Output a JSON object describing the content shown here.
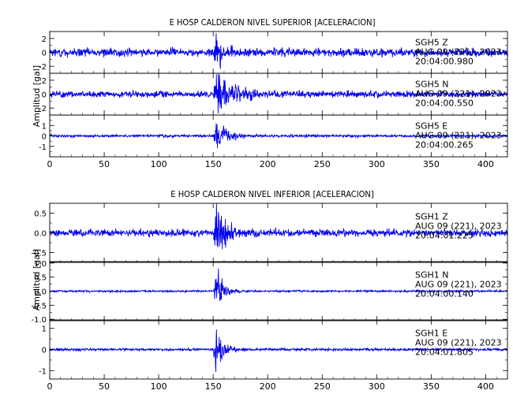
{
  "chart_data": [
    {
      "type": "line",
      "title": "E HOSP CALDERON NIVEL SUPERIOR [ACELERACION]",
      "ylabel": "Amplitud [gal]",
      "xlim": [
        0,
        420
      ],
      "xticks": [
        "0",
        "50",
        "100",
        "150",
        "200",
        "250",
        "300",
        "350",
        "400"
      ],
      "series_color": "#0000ee",
      "series": [
        {
          "channel": "SGH5",
          "component": "Z",
          "date": "AUG 09 (221), 2023",
          "time": "20:04:00.980",
          "ylim": [
            -3,
            3
          ],
          "yticks": [
            -2,
            0,
            2
          ],
          "noise": 0.55,
          "event_peak": 2.8,
          "event_time": 152,
          "decay_s": 6
        },
        {
          "channel": "SGH5",
          "component": "N",
          "date": "AUG 09 (221), 2023",
          "time": "20:04:00.550",
          "ylim": [
            -3,
            3
          ],
          "yticks": [
            -2,
            0,
            2
          ],
          "noise": 0.45,
          "event_peak": 2.6,
          "event_time": 152,
          "decay_s": 18
        },
        {
          "channel": "SGH5",
          "component": "E",
          "date": "AUG 09 (221), 2023",
          "time": "20:04:00.265",
          "ylim": [
            -2,
            2
          ],
          "yticks": [
            -1,
            0,
            1
          ],
          "noise": 0.12,
          "event_peak": 1.7,
          "event_time": 152,
          "decay_s": 10
        }
      ]
    },
    {
      "type": "line",
      "title": "E HOSP CALDERON NIVEL INFERIOR [ACELERACION]",
      "ylabel": "Amplitud [gal]",
      "xlim": [
        0,
        420
      ],
      "xticks": [
        "0",
        "50",
        "100",
        "150",
        "200",
        "250",
        "300",
        "350",
        "400"
      ],
      "series_color": "#0000ee",
      "series": [
        {
          "channel": "SGH1",
          "component": "Z",
          "date": "AUG 09 (221), 2023",
          "time": "20:04:01.225",
          "ylim": [
            -0.75,
            0.75
          ],
          "yticks": [
            -0.5,
            0.0,
            0.5
          ],
          "tick_fmt": 1,
          "noise": 0.09,
          "event_peak": 0.72,
          "event_time": 152,
          "decay_s": 9
        },
        {
          "channel": "SGH1",
          "component": "N",
          "date": "AUG 09 (221), 2023",
          "time": "20:04:00.140",
          "ylim": [
            -1.05,
            1.05
          ],
          "yticks": [
            -1.0,
            -0.5,
            0.0,
            0.5,
            1.0
          ],
          "tick_fmt": 1,
          "noise": 0.035,
          "event_peak": 0.95,
          "event_time": 152,
          "decay_s": 6
        },
        {
          "channel": "SGH1",
          "component": "E",
          "date": "AUG 09 (221), 2023",
          "time": "20:04:01.805",
          "ylim": [
            -1.4,
            1.4
          ],
          "yticks": [
            -1,
            0,
            1
          ],
          "noise": 0.06,
          "event_peak": 1.3,
          "event_time": 152,
          "decay_s": 6
        }
      ]
    }
  ]
}
